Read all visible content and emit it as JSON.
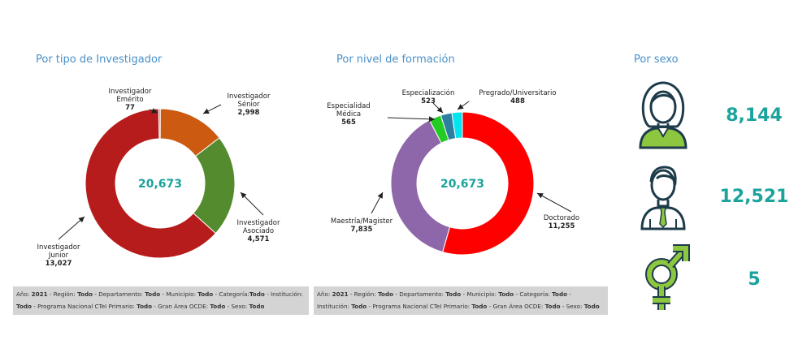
{
  "sections": {
    "tipo": "Por tipo de Investigador",
    "nivel": "Por nivel de formación",
    "sexo": "Por sexo"
  },
  "chart_data": [
    {
      "type": "donut",
      "title": "Por tipo de Investigador",
      "center_label": "20,673",
      "slices": [
        {
          "label": [
            "Investigador",
            "Emérito"
          ],
          "value_label": "77",
          "value": 77,
          "color": "#8c8c8c"
        },
        {
          "label": [
            "Investigador",
            "Sénior"
          ],
          "value_label": "2,998",
          "value": 2998,
          "color": "#cc5a10"
        },
        {
          "label": [
            "Investigador",
            "Asociado"
          ],
          "value_label": "4,571",
          "value": 4571,
          "color": "#558b2f"
        },
        {
          "label": [
            "Investigador",
            "Junior"
          ],
          "value_label": "13,027",
          "value": 13027,
          "color": "#b71c1c"
        }
      ]
    },
    {
      "type": "donut",
      "title": "Por nivel de formación",
      "center_label": "20,673",
      "slices": [
        {
          "label": [
            "Doctorado"
          ],
          "value_label": "11,255",
          "value": 11255,
          "color": "#ff0000"
        },
        {
          "label": [
            "Maestría/Magister"
          ],
          "value_label": "7,835",
          "value": 7835,
          "color": "#8e67aa"
        },
        {
          "label": [
            "Especialidad",
            "Médica"
          ],
          "value_label": "565",
          "value": 565,
          "color": "#22cc22"
        },
        {
          "label": [
            "Especialización"
          ],
          "value_label": "523",
          "value": 523,
          "color": "#2c7f9e"
        },
        {
          "label": [
            "Pregrado/Universitario"
          ],
          "value_label": "488",
          "value": 488,
          "color": "#00e5f0"
        }
      ]
    }
  ],
  "sexo": [
    {
      "icon": "woman-icon",
      "value": "8,144"
    },
    {
      "icon": "man-icon",
      "value": "12,521"
    },
    {
      "icon": "intersex-symbol-icon",
      "value": "5"
    }
  ],
  "footers": {
    "left": {
      "parts": [
        [
          "Año: ",
          "2021"
        ],
        [
          " - Región: ",
          "Todo"
        ],
        [
          " - Departamento: ",
          "Todo"
        ],
        [
          " - Municipio: ",
          "Todo"
        ],
        [
          " - Categoría:",
          "Todo"
        ],
        [
          " - Institución: ",
          "Todo"
        ],
        [
          " - Programa Nacional CTeI Primario: ",
          "Todo"
        ],
        [
          " - Gran Área OCDE: ",
          "Todo"
        ],
        [
          " - Sexo: ",
          "Todo"
        ]
      ]
    },
    "right": {
      "parts": [
        [
          "Año: ",
          "2021"
        ],
        [
          " - Región: ",
          "Todo"
        ],
        [
          " - Departamento: ",
          "Todo"
        ],
        [
          " - Municipio: ",
          "Todo"
        ],
        [
          " - Categoría: ",
          "Todo"
        ],
        [
          " - Institución: ",
          "Todo"
        ],
        [
          " - Programa Nacional CTeI Primario: ",
          "Todo"
        ],
        [
          " - Gran Área OCDE: ",
          "Todo"
        ],
        [
          " - Sexo: ",
          "Todo"
        ]
      ]
    }
  },
  "colors": {
    "accent": "#1ba39c",
    "title": "#4a90c8",
    "icon_green": "#8dc63f",
    "icon_dark": "#1d3b4a"
  }
}
